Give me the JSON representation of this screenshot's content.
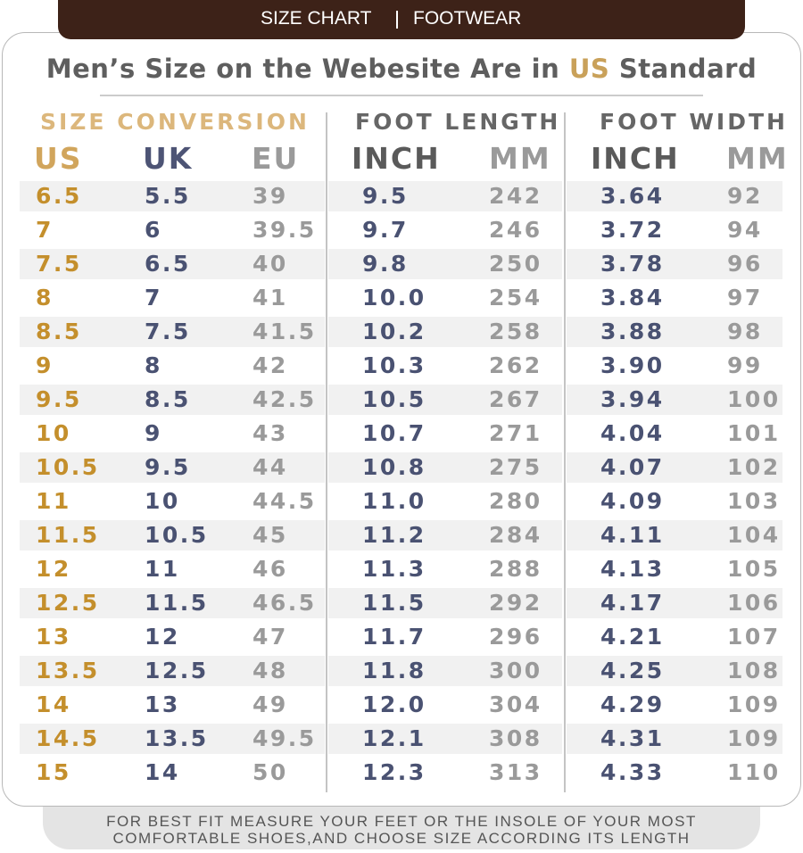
{
  "header": {
    "tab": [
      "SIZE CHART",
      "FOOTWEAR"
    ],
    "title": {
      "before": "Men’s Size on the Webesite Are in ",
      "highlight": "US",
      "after": " Standard"
    }
  },
  "table": {
    "groups": [
      "SIZE CONVERSION",
      "FOOT LENGTH",
      "FOOT WIDTH"
    ],
    "columns": [
      "US",
      "UK",
      "EU",
      "INCH",
      "MM",
      "INCH",
      "MM"
    ],
    "rows": [
      [
        "6.5",
        "5.5",
        "39",
        "9.5",
        "242",
        "3.64",
        "92"
      ],
      [
        "7",
        "6",
        "39.5",
        "9.7",
        "246",
        "3.72",
        "94"
      ],
      [
        "7.5",
        "6.5",
        "40",
        "9.8",
        "250",
        "3.78",
        "96"
      ],
      [
        "8",
        "7",
        "41",
        "10.0",
        "254",
        "3.84",
        "97"
      ],
      [
        "8.5",
        "7.5",
        "41.5",
        "10.2",
        "258",
        "3.88",
        "98"
      ],
      [
        "9",
        "8",
        "42",
        "10.3",
        "262",
        "3.90",
        "99"
      ],
      [
        "9.5",
        "8.5",
        "42.5",
        "10.5",
        "267",
        "3.94",
        "100"
      ],
      [
        "10",
        "9",
        "43",
        "10.7",
        "271",
        "4.04",
        "101"
      ],
      [
        "10.5",
        "9.5",
        "44",
        "10.8",
        "275",
        "4.07",
        "102"
      ],
      [
        "11",
        "10",
        "44.5",
        "11.0",
        "280",
        "4.09",
        "103"
      ],
      [
        "11.5",
        "10.5",
        "45",
        "11.2",
        "284",
        "4.11",
        "104"
      ],
      [
        "12",
        "11",
        "46",
        "11.3",
        "288",
        "4.13",
        "105"
      ],
      [
        "12.5",
        "11.5",
        "46.5",
        "11.5",
        "292",
        "4.17",
        "106"
      ],
      [
        "13",
        "12",
        "47",
        "11.7",
        "296",
        "4.21",
        "107"
      ],
      [
        "13.5",
        "12.5",
        "48",
        "11.8",
        "300",
        "4.25",
        "108"
      ],
      [
        "14",
        "13",
        "49",
        "12.0",
        "304",
        "4.29",
        "109"
      ],
      [
        "14.5",
        "13.5",
        "49.5",
        "12.1",
        "308",
        "4.31",
        "109"
      ],
      [
        "15",
        "14",
        "50",
        "12.3",
        "313",
        "4.33",
        "110"
      ]
    ]
  },
  "footer": [
    "FOR BEST FIT MEASURE YOUR FEET OR THE INSOLE OF YOUR MOST",
    "COMFORTABLE SHOES,AND CHOOSE SIZE ACCORDING ITS LENGTH"
  ]
}
